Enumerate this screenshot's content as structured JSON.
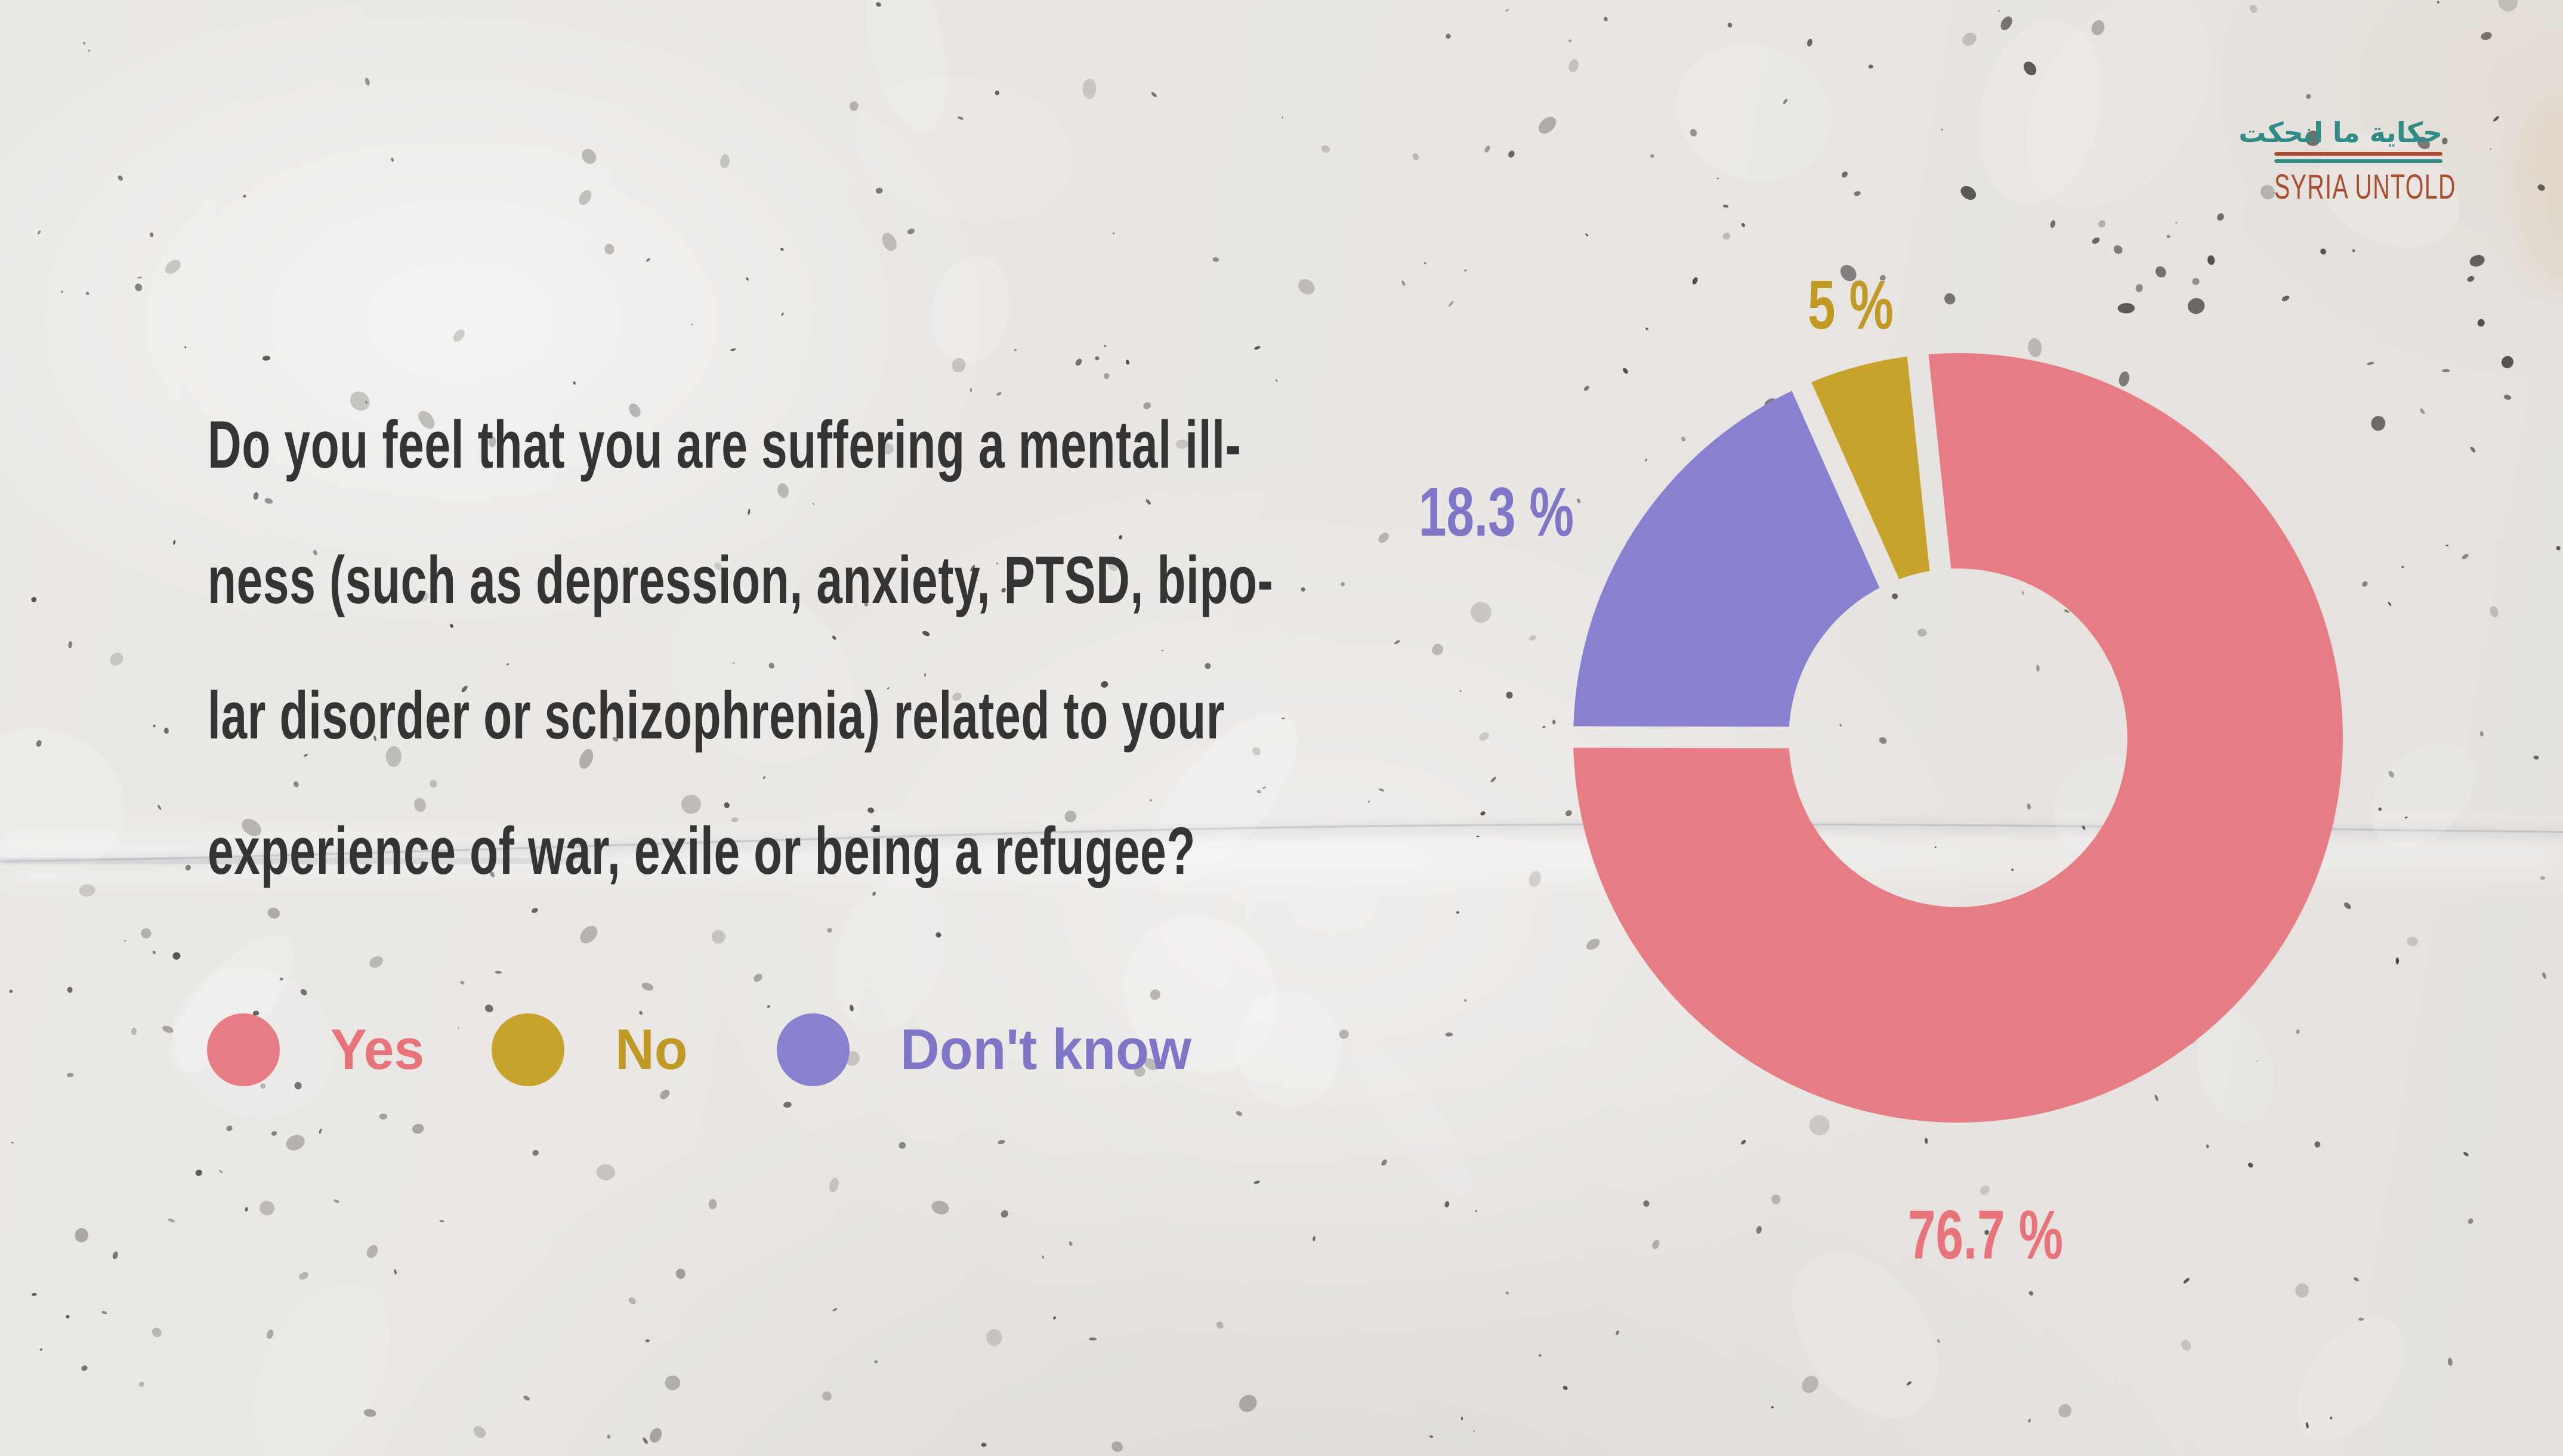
{
  "page": {
    "background_color": "#E9E6E3",
    "speckle_color_dark": "#3E3C39",
    "speckle_color_soft": "#84817C"
  },
  "logo": {
    "arabic": "حكاية ما انحكت",
    "name": "SYRIA UNTOLD",
    "arabic_color": "#2F8C87",
    "name_color": "#A94D31",
    "rule_top_color": "#B0492E",
    "rule_bottom_color": "#2F8C87"
  },
  "question": {
    "color": "#343434",
    "lines": [
      "Do you feel that you are suffering a mental ill-",
      "ness (such as depression, anxiety, PTSD, bipo-",
      "lar disorder or schizophrenia) related to your",
      "experience of war, exile or being a refugee?"
    ]
  },
  "chart_data": {
    "type": "pie",
    "subtype": "donut",
    "title": "Do you feel that you are suffering a mental illness (such as depression, anxiety, PTSD, bipolar disorder or schizophrenia) related to your experience of war, exile or being a refugee?",
    "categories": [
      "Yes",
      "No",
      "Don't know"
    ],
    "values": [
      76.7,
      5,
      18.3
    ],
    "units": "%",
    "value_labels": [
      "76.7 %",
      "5 %",
      "18.3 %"
    ],
    "colors": [
      "#E77D84",
      "#C8A32B",
      "#8881CF"
    ],
    "label_colors": [
      "#E8737B",
      "#C09A25",
      "#7F76C8"
    ],
    "legend_position": "bottom-left",
    "start_angle_deg": -6,
    "clockwise_order": [
      "Yes",
      "Don't know",
      "No"
    ],
    "inner_radius_ratio": 0.44,
    "segment_gap": true
  }
}
